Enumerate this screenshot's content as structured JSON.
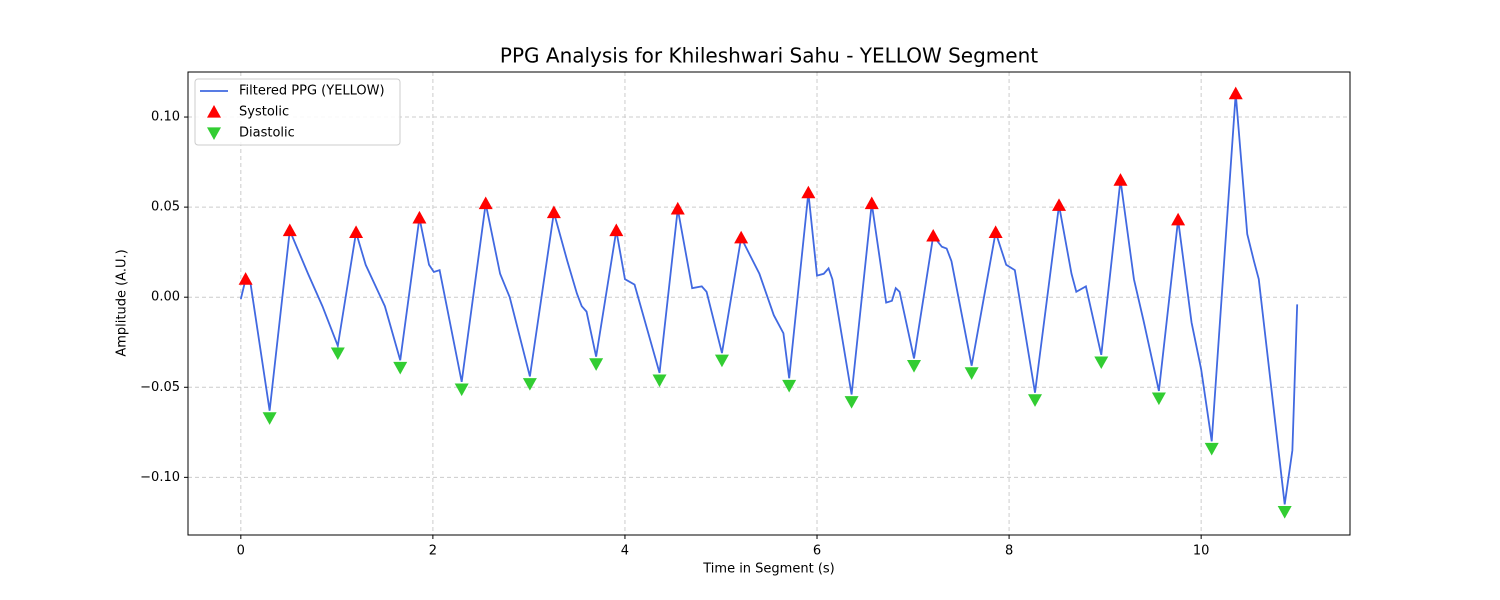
{
  "chart_data": {
    "type": "line",
    "title": "PPG Analysis for Khileshwari Sahu - YELLOW Segment",
    "x_label": "Time in Segment (s)",
    "y_label": "Amplitude (A.U.)",
    "xlim": [
      -0.55,
      11.55
    ],
    "ylim": [
      -0.132,
      0.125
    ],
    "xticks": [
      0,
      2,
      4,
      6,
      8,
      10
    ],
    "yticks": [
      {
        "value": -0.1,
        "label": "−0.10"
      },
      {
        "value": -0.05,
        "label": "−0.05"
      },
      {
        "value": 0,
        "label": "0.00"
      },
      {
        "value": 0.05,
        "label": "0.05"
      },
      {
        "value": 0.1,
        "label": "0.10"
      }
    ],
    "grid": true,
    "legend": "upper left",
    "series": [
      {
        "name": "Filtered PPG (YELLOW)",
        "color": "#4169e1",
        "marker": "line",
        "x": [
          0.0,
          0.05,
          0.1,
          0.3,
          0.51,
          0.7,
          0.85,
          1.01,
          1.2,
          1.3,
          1.5,
          1.66,
          1.86,
          1.96,
          2.01,
          2.07,
          2.3,
          2.55,
          2.7,
          2.8,
          3.01,
          3.26,
          3.4,
          3.5,
          3.55,
          3.6,
          3.7,
          3.91,
          4.0,
          4.1,
          4.36,
          4.55,
          4.7,
          4.8,
          4.85,
          5.01,
          5.21,
          5.4,
          5.55,
          5.65,
          5.71,
          5.91,
          6.0,
          6.07,
          6.12,
          6.16,
          6.36,
          6.57,
          6.72,
          6.78,
          6.82,
          6.86,
          7.01,
          7.21,
          7.3,
          7.35,
          7.4,
          7.61,
          7.86,
          7.97,
          8.06,
          8.27,
          8.52,
          8.65,
          8.7,
          8.8,
          8.96,
          9.16,
          9.3,
          9.4,
          9.56,
          9.76,
          9.9,
          10.0,
          10.11,
          10.36,
          10.48,
          10.55,
          10.6,
          10.87,
          10.95,
          11.0
        ],
        "values": [
          -0.001,
          0.01,
          0.008,
          -0.063,
          0.037,
          0.013,
          -0.005,
          -0.027,
          0.036,
          0.018,
          -0.005,
          -0.035,
          0.044,
          0.018,
          0.014,
          0.015,
          -0.047,
          0.052,
          0.013,
          0.0,
          -0.044,
          0.047,
          0.02,
          0.002,
          -0.005,
          -0.008,
          -0.033,
          0.037,
          0.01,
          0.007,
          -0.042,
          0.049,
          0.005,
          0.006,
          0.003,
          -0.031,
          0.033,
          0.013,
          -0.01,
          -0.02,
          -0.045,
          0.058,
          0.012,
          0.013,
          0.016,
          0.01,
          -0.054,
          0.052,
          -0.003,
          -0.002,
          0.005,
          0.003,
          -0.034,
          0.034,
          0.028,
          0.027,
          0.02,
          -0.038,
          0.036,
          0.018,
          0.015,
          -0.053,
          0.051,
          0.013,
          0.003,
          0.006,
          -0.032,
          0.065,
          0.01,
          -0.013,
          -0.052,
          0.043,
          -0.014,
          -0.04,
          -0.08,
          0.113,
          0.035,
          0.02,
          0.01,
          -0.115,
          -0.085,
          -0.004
        ]
      },
      {
        "name": "Systolic",
        "color": "#ff0000",
        "marker": "triangle-up",
        "x": [
          0.05,
          0.51,
          1.2,
          1.86,
          2.55,
          3.26,
          3.91,
          4.55,
          5.21,
          5.91,
          6.57,
          7.21,
          7.86,
          8.52,
          9.16,
          9.76,
          10.36
        ],
        "values": [
          0.01,
          0.037,
          0.036,
          0.044,
          0.052,
          0.047,
          0.037,
          0.049,
          0.033,
          0.058,
          0.052,
          0.034,
          0.036,
          0.051,
          0.065,
          0.043,
          0.113
        ]
      },
      {
        "name": "Diastolic",
        "color": "#32cd32",
        "marker": "triangle-down",
        "x": [
          0.3,
          1.01,
          1.66,
          2.3,
          3.01,
          3.7,
          4.36,
          5.01,
          5.71,
          6.36,
          7.01,
          7.61,
          8.27,
          8.96,
          9.56,
          10.11,
          10.87
        ],
        "values": [
          -0.067,
          -0.031,
          -0.039,
          -0.051,
          -0.048,
          -0.037,
          -0.046,
          -0.035,
          -0.049,
          -0.058,
          -0.038,
          -0.042,
          -0.057,
          -0.036,
          -0.056,
          -0.084,
          -0.119
        ]
      }
    ]
  }
}
